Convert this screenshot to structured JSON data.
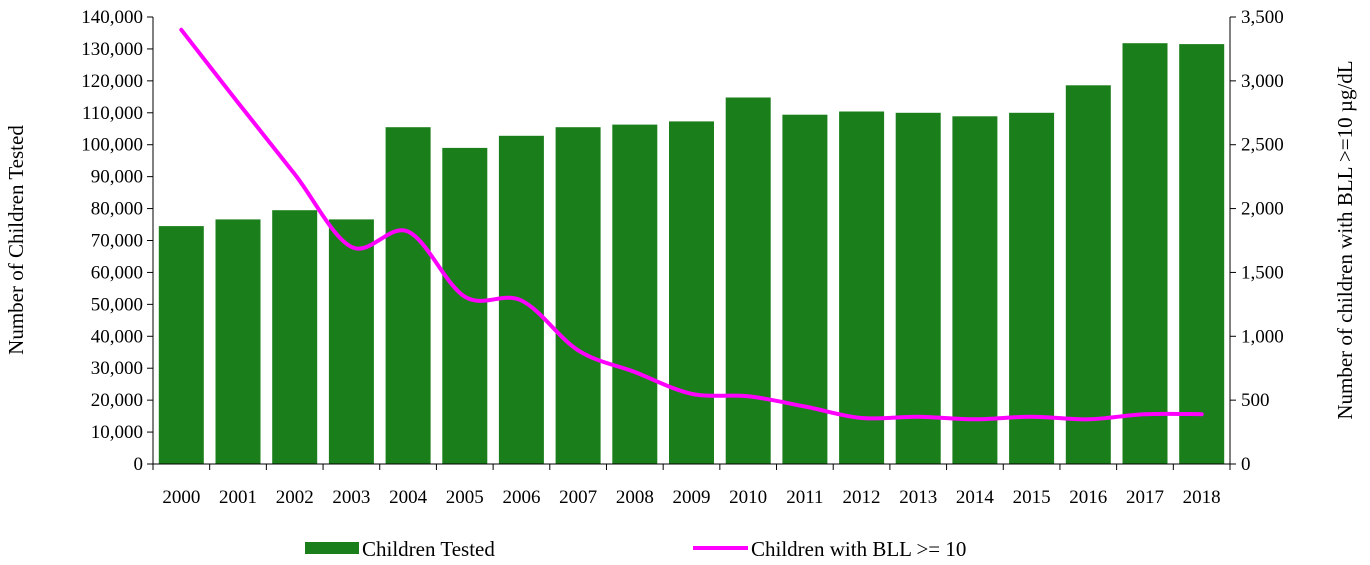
{
  "chart_data": {
    "type": "bar",
    "categories": [
      "2000",
      "2001",
      "2002",
      "2003",
      "2004",
      "2005",
      "2006",
      "2007",
      "2008",
      "2009",
      "2010",
      "2011",
      "2012",
      "2013",
      "2014",
      "2015",
      "2016",
      "2017",
      "2018"
    ],
    "series": [
      {
        "name": "Children Tested",
        "type": "bar",
        "axis": "left",
        "color": "#1a7f1a",
        "values": [
          74500,
          76600,
          79500,
          76600,
          105500,
          99000,
          102800,
          105500,
          106300,
          107300,
          114800,
          109400,
          110400,
          110000,
          108900,
          110000,
          118600,
          131800,
          131500
        ]
      },
      {
        "name": "Children with BLL >= 10",
        "type": "line",
        "axis": "right",
        "color": "#ff00ff",
        "values": [
          3400,
          2830,
          2270,
          1700,
          1820,
          1310,
          1280,
          890,
          720,
          550,
          530,
          450,
          360,
          370,
          350,
          370,
          350,
          390,
          390
        ]
      }
    ],
    "ylabel": "Number of Children Tested",
    "ylabel_right": "Number of children with BLL >=10 µg/dL",
    "ylim": [
      0,
      140000
    ],
    "yticks": [
      0,
      10000,
      20000,
      30000,
      40000,
      50000,
      60000,
      70000,
      80000,
      90000,
      100000,
      110000,
      120000,
      130000,
      140000
    ],
    "ylim_right": [
      0,
      3500
    ],
    "yticks_right": [
      0,
      500,
      1000,
      1500,
      2000,
      2500,
      3000,
      3500
    ],
    "grid": false,
    "legend_position": "bottom"
  }
}
